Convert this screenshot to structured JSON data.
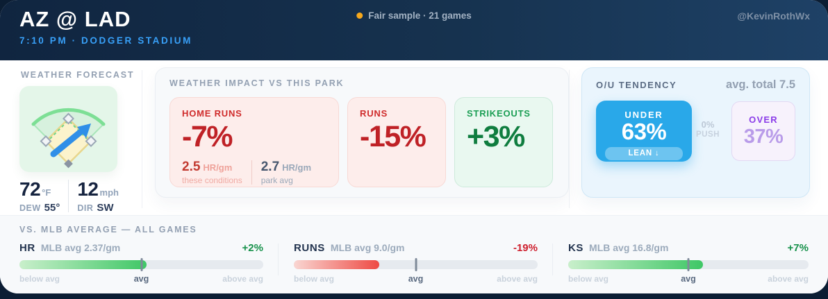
{
  "header": {
    "title": "AZ @ LAD",
    "subtitle": "7:10 PM · DODGER STADIUM",
    "sample_note": "Fair sample · 21 games",
    "handle": "@KevinRothWx"
  },
  "forecast": {
    "label": "WEATHER FORECAST",
    "field_icon": "baseball-field-with-wind-arrow",
    "wind_arrow_icon": "arrow-northeast",
    "temp_value": "72",
    "temp_unit": "°F",
    "dew_label": "DEW",
    "dew_value": "55°",
    "wind_value": "12",
    "wind_unit": "mph",
    "dir_label": "DIR",
    "dir_value": "SW"
  },
  "impact": {
    "title": "WEATHER IMPACT VS THIS PARK",
    "cards": [
      {
        "label": "HOME RUNS",
        "value": "-7%",
        "tone": "negative",
        "stats": [
          {
            "value": "2.5",
            "unit": "HR/gm",
            "caption": "these conditions"
          },
          {
            "value": "2.7",
            "unit": "HR/gm",
            "caption": "park avg"
          }
        ]
      },
      {
        "label": "RUNS",
        "value": "-15%",
        "tone": "negative"
      },
      {
        "label": "STRIKEOUTS",
        "value": "+3%",
        "tone": "positive"
      }
    ]
  },
  "ou": {
    "title": "O/U TENDENCY",
    "avg_total": "avg. total 7.5",
    "under_label": "UNDER",
    "under_value": "63%",
    "lean_label": "LEAN ↓",
    "push_value": "0%",
    "push_label": "PUSH",
    "over_label": "OVER",
    "over_value": "37%"
  },
  "vs_mlb": {
    "title": "VS. MLB AVERAGE — ALL GAMES",
    "scale_labels": {
      "low": "below avg",
      "mid": "avg",
      "high": "above avg"
    },
    "metrics": [
      {
        "name": "HR",
        "avg_note": "MLB avg 2.37/gm",
        "delta": "+2%",
        "fill_pct": 52,
        "tone": "positive"
      },
      {
        "name": "RUNS",
        "avg_note": "MLB avg 9.0/gm",
        "delta": "-19%",
        "fill_pct": 35,
        "tone": "negative"
      },
      {
        "name": "KS",
        "avg_note": "MLB avg 16.8/gm",
        "delta": "+7%",
        "fill_pct": 56,
        "tone": "positive"
      }
    ]
  },
  "colors": {
    "header_navy": "#16324f",
    "subtitle_blue": "#38a0f8",
    "sample_dot_orange": "#f6a81c",
    "negative_red": "#bf2126",
    "positive_green": "#0f7d3f",
    "under_blue": "#29a8e9",
    "over_purple": "#8a3be8",
    "fill_green": "#3fc766",
    "fill_red": "#ee4a44"
  }
}
